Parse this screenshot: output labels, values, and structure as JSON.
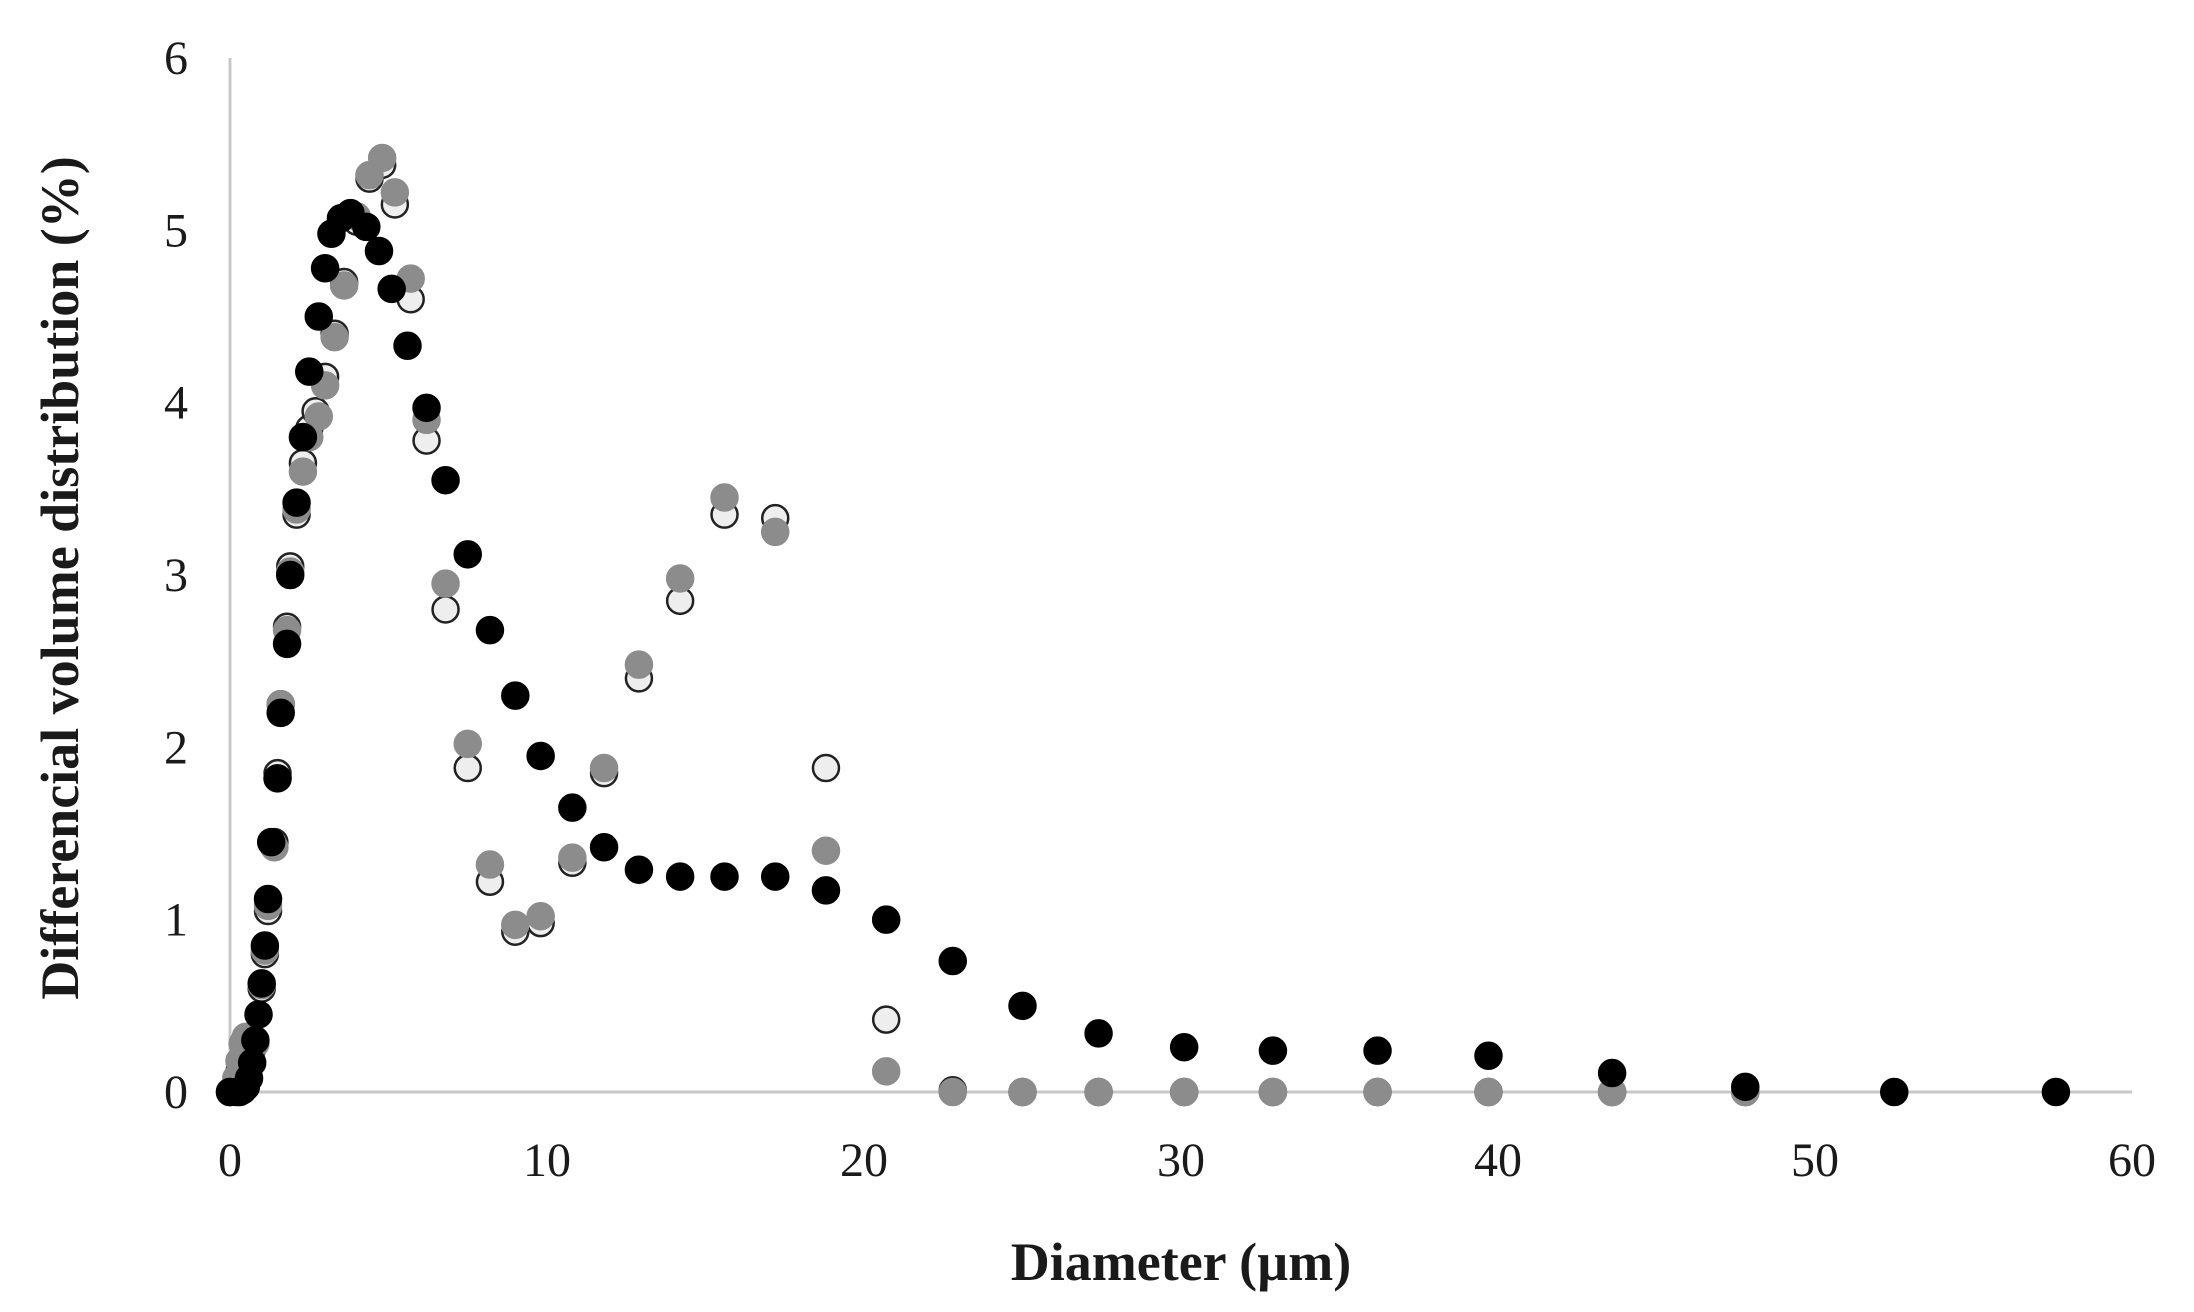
{
  "chart_data": {
    "type": "scatter",
    "title": "",
    "xlabel": "Diameter (µm)",
    "ylabel": "Differencial volume distribution (%)",
    "xlim": [
      0,
      60
    ],
    "ylim": [
      0,
      6
    ],
    "xticks": [
      "0",
      "10",
      "20",
      "30",
      "40",
      "50",
      "60"
    ],
    "yticks": [
      "0",
      "1",
      "2",
      "3",
      "4",
      "5",
      "6"
    ],
    "grid": false,
    "legend": "none",
    "series": [
      {
        "color": "#eeeeee",
        "stroke": "#222222",
        "points": [
          [
            0.0,
            0.0
          ],
          [
            0.1,
            0.01
          ],
          [
            0.2,
            0.05
          ],
          [
            0.3,
            0.12
          ],
          [
            0.4,
            0.2
          ],
          [
            0.5,
            0.27
          ],
          [
            0.6,
            0.3
          ],
          [
            0.7,
            0.25
          ],
          [
            1.0,
            0.6
          ],
          [
            1.1,
            0.8
          ],
          [
            1.2,
            1.05
          ],
          [
            1.4,
            1.45
          ],
          [
            1.5,
            1.85
          ],
          [
            1.6,
            2.25
          ],
          [
            1.8,
            2.7
          ],
          [
            1.9,
            3.05
          ],
          [
            2.1,
            3.35
          ],
          [
            2.3,
            3.65
          ],
          [
            2.5,
            3.85
          ],
          [
            2.7,
            3.95
          ],
          [
            3.0,
            4.15
          ],
          [
            3.3,
            4.4
          ],
          [
            3.6,
            4.7
          ],
          [
            4.0,
            5.05
          ],
          [
            4.4,
            5.3
          ],
          [
            4.8,
            5.38
          ],
          [
            5.2,
            5.15
          ],
          [
            5.7,
            4.6
          ],
          [
            6.2,
            3.78
          ],
          [
            6.8,
            2.8
          ],
          [
            7.5,
            1.88
          ],
          [
            8.2,
            1.22
          ],
          [
            9.0,
            0.93
          ],
          [
            9.8,
            0.98
          ],
          [
            10.8,
            1.33
          ],
          [
            11.8,
            1.85
          ],
          [
            12.9,
            2.4
          ],
          [
            14.2,
            2.85
          ],
          [
            15.6,
            3.35
          ],
          [
            17.2,
            3.33
          ],
          [
            18.8,
            1.88
          ],
          [
            20.7,
            0.42
          ],
          [
            22.8,
            0.01
          ],
          [
            25.0,
            0.0
          ],
          [
            27.4,
            0.0
          ],
          [
            30.1,
            0.0
          ],
          [
            32.9,
            0.0
          ],
          [
            36.2,
            0.0
          ],
          [
            39.7,
            0.0
          ],
          [
            43.6,
            0.0
          ],
          [
            47.8,
            0.0
          ]
        ]
      },
      {
        "color": "#8c8c8c",
        "stroke": "#8c8c8c",
        "points": [
          [
            0.0,
            0.0
          ],
          [
            0.1,
            0.02
          ],
          [
            0.2,
            0.08
          ],
          [
            0.3,
            0.18
          ],
          [
            0.4,
            0.28
          ],
          [
            0.5,
            0.32
          ],
          [
            0.6,
            0.3
          ],
          [
            0.8,
            0.28
          ],
          [
            1.0,
            0.62
          ],
          [
            1.1,
            0.82
          ],
          [
            1.2,
            1.08
          ],
          [
            1.4,
            1.42
          ],
          [
            1.5,
            1.82
          ],
          [
            1.6,
            2.25
          ],
          [
            1.8,
            2.68
          ],
          [
            1.9,
            3.02
          ],
          [
            2.1,
            3.38
          ],
          [
            2.3,
            3.6
          ],
          [
            2.5,
            3.8
          ],
          [
            2.8,
            3.92
          ],
          [
            3.0,
            4.1
          ],
          [
            3.3,
            4.38
          ],
          [
            3.6,
            4.68
          ],
          [
            4.0,
            5.08
          ],
          [
            4.4,
            5.32
          ],
          [
            4.8,
            5.42
          ],
          [
            5.2,
            5.22
          ],
          [
            5.7,
            4.72
          ],
          [
            6.2,
            3.9
          ],
          [
            6.8,
            2.95
          ],
          [
            7.5,
            2.02
          ],
          [
            8.2,
            1.32
          ],
          [
            9.0,
            0.97
          ],
          [
            9.8,
            1.02
          ],
          [
            10.8,
            1.36
          ],
          [
            11.8,
            1.88
          ],
          [
            12.9,
            2.48
          ],
          [
            14.2,
            2.98
          ],
          [
            15.6,
            3.45
          ],
          [
            17.2,
            3.25
          ],
          [
            18.8,
            1.4
          ],
          [
            20.7,
            0.12
          ],
          [
            22.8,
            0.0
          ],
          [
            25.0,
            0.0
          ],
          [
            27.4,
            0.0
          ],
          [
            30.1,
            0.0
          ],
          [
            32.9,
            0.0
          ],
          [
            36.2,
            0.0
          ],
          [
            39.7,
            0.0
          ],
          [
            43.6,
            0.0
          ],
          [
            47.8,
            0.0
          ]
        ]
      },
      {
        "color": "#000000",
        "stroke": "#000000",
        "points": [
          [
            0.0,
            0.0
          ],
          [
            0.2,
            0.0
          ],
          [
            0.3,
            0.0
          ],
          [
            0.4,
            0.01
          ],
          [
            0.5,
            0.03
          ],
          [
            0.6,
            0.08
          ],
          [
            0.7,
            0.17
          ],
          [
            0.8,
            0.3
          ],
          [
            0.9,
            0.45
          ],
          [
            1.0,
            0.63
          ],
          [
            1.1,
            0.85
          ],
          [
            1.2,
            1.12
          ],
          [
            1.3,
            1.45
          ],
          [
            1.5,
            1.82
          ],
          [
            1.6,
            2.2
          ],
          [
            1.8,
            2.6
          ],
          [
            1.9,
            3.0
          ],
          [
            2.1,
            3.42
          ],
          [
            2.3,
            3.8
          ],
          [
            2.5,
            4.18
          ],
          [
            2.8,
            4.5
          ],
          [
            3.0,
            4.78
          ],
          [
            3.2,
            4.98
          ],
          [
            3.5,
            5.07
          ],
          [
            3.8,
            5.1
          ],
          [
            4.3,
            5.02
          ],
          [
            4.7,
            4.88
          ],
          [
            5.1,
            4.66
          ],
          [
            5.6,
            4.33
          ],
          [
            6.2,
            3.97
          ],
          [
            6.8,
            3.55
          ],
          [
            7.5,
            3.12
          ],
          [
            8.2,
            2.68
          ],
          [
            9.0,
            2.3
          ],
          [
            9.8,
            1.95
          ],
          [
            10.8,
            1.65
          ],
          [
            11.8,
            1.42
          ],
          [
            12.9,
            1.29
          ],
          [
            14.2,
            1.25
          ],
          [
            15.6,
            1.25
          ],
          [
            17.2,
            1.25
          ],
          [
            18.8,
            1.17
          ],
          [
            20.7,
            1.0
          ],
          [
            22.8,
            0.76
          ],
          [
            25.0,
            0.5
          ],
          [
            27.4,
            0.34
          ],
          [
            30.1,
            0.26
          ],
          [
            32.9,
            0.24
          ],
          [
            36.2,
            0.24
          ],
          [
            39.7,
            0.21
          ],
          [
            43.6,
            0.11
          ],
          [
            47.8,
            0.03
          ],
          [
            52.5,
            0.0
          ],
          [
            57.6,
            0.0
          ]
        ]
      }
    ]
  }
}
